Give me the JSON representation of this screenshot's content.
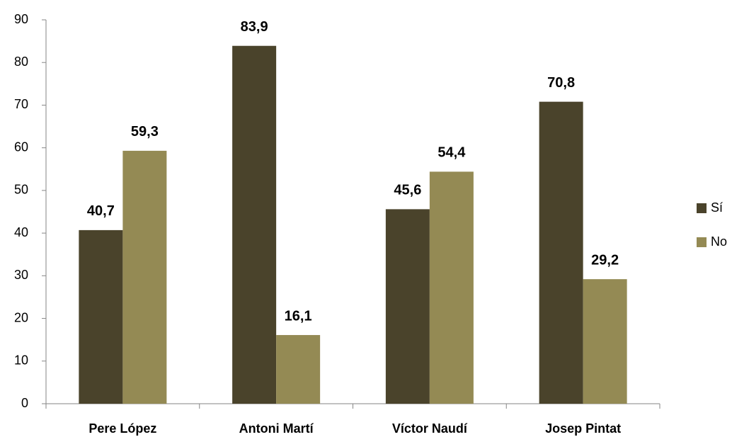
{
  "chart_data": {
    "type": "bar",
    "categories": [
      "Pere López",
      "Antoni Martí",
      "Víctor Naudí",
      "Josep Pintat"
    ],
    "series": [
      {
        "name": "Sí",
        "color": "#4a432b",
        "values": [
          40.7,
          83.9,
          45.6,
          70.8
        ],
        "value_labels": [
          "40,7",
          "83,9",
          "45,6",
          "70,8"
        ]
      },
      {
        "name": "No",
        "color": "#948a54",
        "values": [
          59.3,
          16.1,
          54.4,
          29.2
        ],
        "value_labels": [
          "59,3",
          "16,1",
          "54,4",
          "29,2"
        ]
      }
    ],
    "ylim": [
      0,
      90
    ],
    "yticks": [
      0,
      10,
      20,
      30,
      40,
      50,
      60,
      70,
      80,
      90
    ],
    "grid": false,
    "legend": "right"
  }
}
